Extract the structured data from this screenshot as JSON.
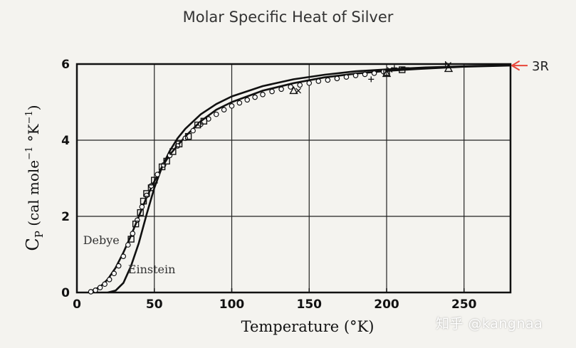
{
  "chart_data": {
    "type": "line",
    "title": "Molar Specific Heat of Silver",
    "xlabel": "Temperature (°K)",
    "ylabel": "C_P (cal mole⁻¹ °K⁻¹)",
    "ylabel_main": "C",
    "ylabel_sub": "P",
    "ylabel_rest": " (cal mole",
    "ylabel_sup1": "−1",
    "ylabel_mid": " °K",
    "ylabel_sup2": "−1",
    "ylabel_end": ")",
    "xlim": [
      0,
      280
    ],
    "ylim": [
      0,
      6
    ],
    "xticks": [
      0,
      50,
      100,
      150,
      200,
      250
    ],
    "yticks": [
      0,
      2,
      4,
      6
    ],
    "grid": true,
    "series": [
      {
        "name": "Debye",
        "style": "solid",
        "x": [
          10,
          15,
          20,
          25,
          30,
          35,
          40,
          45,
          50,
          55,
          60,
          70,
          80,
          90,
          100,
          120,
          140,
          160,
          180,
          200,
          220,
          250,
          280
        ],
        "y": [
          0.05,
          0.15,
          0.35,
          0.65,
          1.05,
          1.5,
          2.0,
          2.5,
          2.92,
          3.3,
          3.62,
          4.1,
          4.5,
          4.8,
          5.0,
          5.3,
          5.5,
          5.65,
          5.75,
          5.82,
          5.87,
          5.93,
          5.96
        ]
      },
      {
        "name": "Einstein",
        "style": "solid",
        "x": [
          20,
          25,
          30,
          35,
          40,
          45,
          50,
          55,
          60,
          65,
          70,
          80,
          90,
          100,
          120,
          140,
          160,
          180,
          200,
          225,
          250,
          280
        ],
        "y": [
          0.0,
          0.05,
          0.25,
          0.7,
          1.3,
          2.05,
          2.75,
          3.3,
          3.72,
          4.05,
          4.3,
          4.68,
          4.95,
          5.15,
          5.42,
          5.6,
          5.72,
          5.81,
          5.86,
          5.91,
          5.94,
          5.97
        ]
      }
    ],
    "markers": {
      "circles": {
        "x": [
          9,
          12,
          15,
          18,
          21,
          24,
          27,
          30,
          33,
          36,
          39,
          42,
          45,
          48,
          52,
          56,
          60,
          65,
          70,
          75,
          80,
          85,
          90,
          95,
          100,
          105,
          110,
          115,
          120,
          126,
          132,
          138,
          144,
          150,
          156,
          162,
          168,
          174,
          180,
          186,
          192,
          198
        ],
        "y": [
          0.02,
          0.06,
          0.13,
          0.22,
          0.34,
          0.5,
          0.7,
          0.95,
          1.25,
          1.55,
          1.9,
          2.25,
          2.55,
          2.8,
          3.1,
          3.35,
          3.6,
          3.85,
          4.05,
          4.25,
          4.42,
          4.56,
          4.68,
          4.8,
          4.9,
          4.98,
          5.06,
          5.13,
          5.2,
          5.28,
          5.34,
          5.4,
          5.45,
          5.5,
          5.55,
          5.58,
          5.62,
          5.66,
          5.7,
          5.73,
          5.76,
          5.8
        ]
      },
      "squares": {
        "x": [
          35,
          38,
          41,
          43,
          45,
          48,
          50,
          55,
          58,
          62,
          66,
          72,
          78,
          82,
          200,
          210
        ],
        "y": [
          1.4,
          1.8,
          2.1,
          2.4,
          2.6,
          2.75,
          2.95,
          3.3,
          3.45,
          3.7,
          3.9,
          4.1,
          4.4,
          4.5,
          5.78,
          5.85
        ]
      },
      "triangles": {
        "x": [
          140,
          200,
          240
        ],
        "y": [
          5.3,
          5.75,
          5.88
        ]
      },
      "crosses": {
        "x": [
          143,
          202,
          240
        ],
        "y": [
          5.3,
          5.85,
          5.98
        ]
      },
      "pluses": {
        "x": [
          190,
          205,
          238
        ],
        "y": [
          5.6,
          5.9,
          6.0
        ]
      },
      "dashes": {
        "x": [
          212
        ],
        "y": [
          5.9
        ]
      }
    },
    "annotations": [
      {
        "text": "Debye",
        "x": 4,
        "y": 1.38
      },
      {
        "text": "Einstein",
        "x": 33,
        "y": 0.62
      },
      {
        "text": "3R",
        "x": 280,
        "y": 5.96
      }
    ],
    "asymptote_arrow_color": "#e8463a"
  },
  "watermark": "知乎 @kangnaa"
}
